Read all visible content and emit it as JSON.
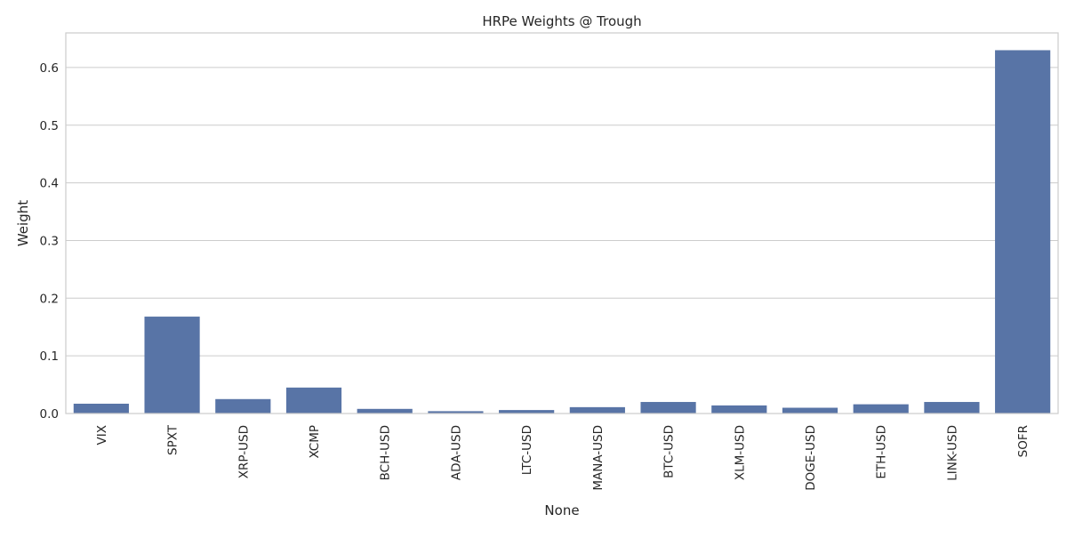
{
  "chart_data": {
    "type": "bar",
    "title": "HRPe Weights @ Trough",
    "xlabel": "None",
    "ylabel": "Weight",
    "categories": [
      "VIX",
      "SPXT",
      "XRP-USD",
      "XCMP",
      "BCH-USD",
      "ADA-USD",
      "LTC-USD",
      "MANA-USD",
      "BTC-USD",
      "XLM-USD",
      "DOGE-USD",
      "ETH-USD",
      "LINK-USD",
      "SOFR"
    ],
    "values": [
      0.017,
      0.168,
      0.025,
      0.045,
      0.008,
      0.004,
      0.006,
      0.011,
      0.02,
      0.014,
      0.01,
      0.016,
      0.02,
      0.63
    ],
    "ylim": [
      0,
      0.66
    ],
    "yticks": [
      "0.0",
      "0.1",
      "0.2",
      "0.3",
      "0.4",
      "0.5",
      "0.6"
    ],
    "grid": true,
    "bar_color": "#5874a6"
  }
}
